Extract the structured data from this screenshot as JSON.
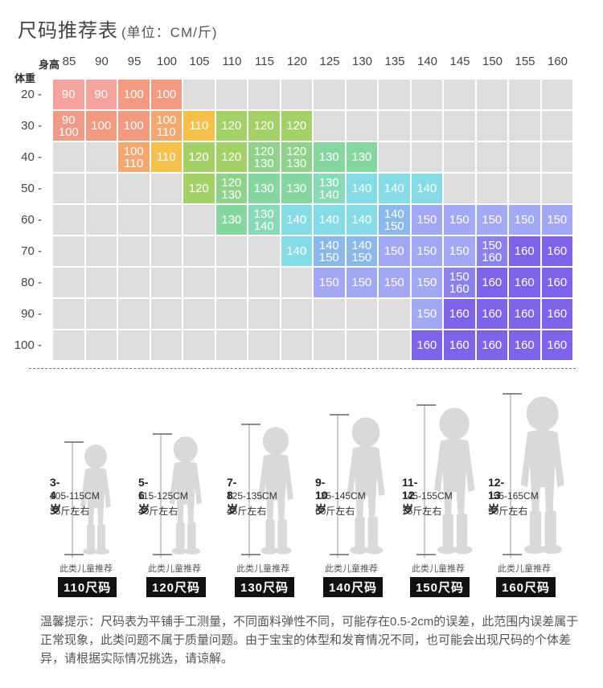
{
  "title": {
    "main": "尺码推荐表",
    "unit": "(单位：CM/斤)"
  },
  "axis": {
    "height_label": "身高",
    "weight_label": "体重"
  },
  "heights": [
    "85",
    "90",
    "95",
    "100",
    "105",
    "110",
    "115",
    "120",
    "125",
    "130",
    "135",
    "140",
    "145",
    "150",
    "155",
    "160"
  ],
  "weights": [
    "20",
    "30",
    "40",
    "50",
    "60",
    "70",
    "80",
    "90",
    "100"
  ],
  "colors": {
    "90": "#f6a39d",
    "90/100": "#f19a88",
    "100": "#f39a80",
    "100/110": "#f4a870",
    "110": "#f6c14a",
    "120": "#a3d167",
    "120/130": "#8fd28a",
    "130": "#86d6a0",
    "130/140": "#88dab6",
    "140": "#86dce6",
    "140/150": "#8ab8ea",
    "150": "#a3a8f4",
    "150/160": "#8c82ee",
    "160": "#7f62ea",
    "gray": "#dddddd"
  },
  "grid": [
    [
      "90",
      "90",
      "100",
      "100",
      "",
      "",
      "",
      "",
      "",
      "",
      "",
      "",
      "",
      "",
      "",
      ""
    ],
    [
      "90/100",
      "100",
      "100",
      "100/110",
      "110",
      "120",
      "120",
      "120",
      "",
      "",
      "",
      "",
      "",
      "",
      "",
      ""
    ],
    [
      "",
      "",
      "100/110",
      "110",
      "120",
      "120",
      "120/130",
      "120/130",
      "130",
      "130",
      "",
      "",
      "",
      "",
      "",
      ""
    ],
    [
      "",
      "",
      "",
      "",
      "120",
      "120/130",
      "130",
      "130",
      "130/140",
      "140",
      "140",
      "140",
      "",
      "",
      "",
      ""
    ],
    [
      "",
      "",
      "",
      "",
      "",
      "130",
      "130/140",
      "140",
      "140",
      "140",
      "140/150",
      "150",
      "150",
      "150",
      "150",
      "150"
    ],
    [
      "",
      "",
      "",
      "",
      "",
      "",
      "",
      "140",
      "140/150",
      "140/150",
      "150",
      "150",
      "150",
      "150/160",
      "160",
      "160"
    ],
    [
      "",
      "",
      "",
      "",
      "",
      "",
      "",
      "",
      "150",
      "150",
      "150",
      "150",
      "150/160",
      "160",
      "160",
      "160"
    ],
    [
      "",
      "",
      "",
      "",
      "",
      "",
      "",
      "",
      "",
      "",
      "",
      "150",
      "160",
      "160",
      "160",
      "160"
    ],
    [
      "",
      "",
      "",
      "",
      "",
      "",
      "",
      "",
      "",
      "",
      "",
      "160",
      "160",
      "160",
      "160",
      "160"
    ]
  ],
  "kids": [
    {
      "age": "3-4岁",
      "range": "105-115CM",
      "weight": "35斤左右",
      "rec": "此类儿童推荐",
      "size": "110尺码"
    },
    {
      "age": "5-6岁",
      "range": "115-125CM",
      "weight": "40斤左右",
      "rec": "此类儿童推荐",
      "size": "120尺码"
    },
    {
      "age": "7-8岁",
      "range": "125-135CM",
      "weight": "45斤左右",
      "rec": "此类儿童推荐",
      "size": "130尺码"
    },
    {
      "age": "9-10岁",
      "range": "135-145CM",
      "weight": "60斤左右",
      "rec": "此类儿童推荐",
      "size": "140尺码"
    },
    {
      "age": "11-12岁",
      "range": "145-155CM",
      "weight": "75斤左右",
      "rec": "此类儿童推荐",
      "size": "150尺码"
    },
    {
      "age": "12-13岁",
      "range": "155-165CM",
      "weight": "90斤左右",
      "rec": "此类儿童推荐",
      "size": "160尺码"
    }
  ],
  "note": "温馨提示：尺码表为平铺手工测量，不同面料弹性不同，可能存在0.5-2cm的误差，此范围内误差属于正常现象，此类问题不属于质量问题。由于宝宝的体型和发育情况不同，也可能会出现尺码的个体差异，请根据实际情况挑选，请谅解。"
}
